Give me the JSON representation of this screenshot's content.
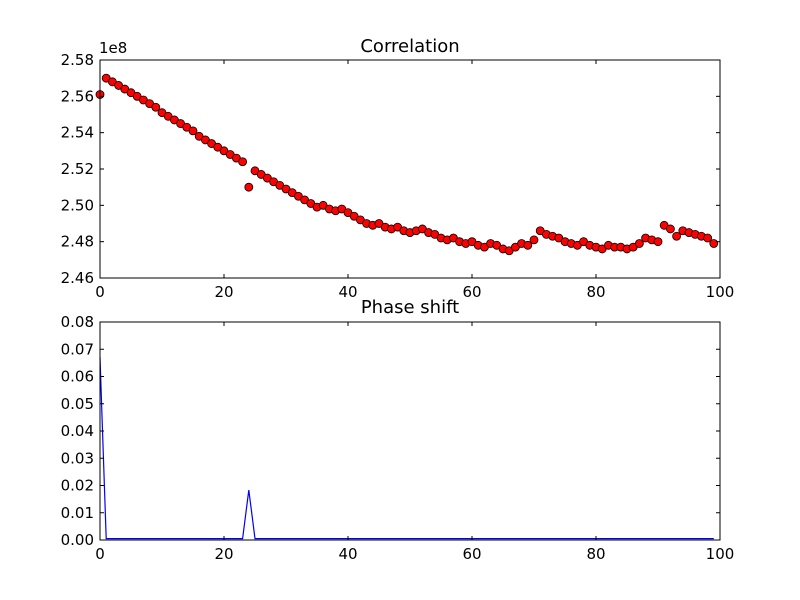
{
  "chart_data": [
    {
      "type": "scatter",
      "title": "Correlation",
      "xlabel": "",
      "ylabel": "",
      "offset_label": "1e8",
      "xlim": [
        0,
        100
      ],
      "ylim": [
        2.46,
        2.58
      ],
      "x_ticks": [
        0,
        20,
        40,
        60,
        80,
        100
      ],
      "x_tick_labels": [
        "0",
        "20",
        "40",
        "60",
        "80",
        "100"
      ],
      "y_ticks": [
        2.46,
        2.48,
        2.5,
        2.52,
        2.54,
        2.56,
        2.58
      ],
      "y_tick_labels": [
        "2.46",
        "2.48",
        "2.50",
        "2.52",
        "2.54",
        "2.56",
        "2.58"
      ],
      "grid": false,
      "marker_color": "#ff0000",
      "x": [
        0,
        1,
        2,
        3,
        4,
        5,
        6,
        7,
        8,
        9,
        10,
        11,
        12,
        13,
        14,
        15,
        16,
        17,
        18,
        19,
        20,
        21,
        22,
        23,
        24,
        25,
        26,
        27,
        28,
        29,
        30,
        31,
        32,
        33,
        34,
        35,
        36,
        37,
        38,
        39,
        40,
        41,
        42,
        43,
        44,
        45,
        46,
        47,
        48,
        49,
        50,
        51,
        52,
        53,
        54,
        55,
        56,
        57,
        58,
        59,
        60,
        61,
        62,
        63,
        64,
        65,
        66,
        67,
        68,
        69,
        70,
        71,
        72,
        73,
        74,
        75,
        76,
        77,
        78,
        79,
        80,
        81,
        82,
        83,
        84,
        85,
        86,
        87,
        88,
        89,
        90,
        91,
        92,
        93,
        94,
        95,
        96,
        97,
        98,
        99
      ],
      "y": [
        2.561,
        2.57,
        2.568,
        2.566,
        2.564,
        2.562,
        2.56,
        2.558,
        2.556,
        2.554,
        2.551,
        2.549,
        2.547,
        2.545,
        2.543,
        2.541,
        2.538,
        2.536,
        2.534,
        2.532,
        2.53,
        2.528,
        2.526,
        2.524,
        2.51,
        2.519,
        2.517,
        2.515,
        2.513,
        2.511,
        2.509,
        2.507,
        2.505,
        2.503,
        2.501,
        2.499,
        2.5,
        2.498,
        2.497,
        2.498,
        2.496,
        2.494,
        2.492,
        2.49,
        2.489,
        2.49,
        2.488,
        2.487,
        2.488,
        2.486,
        2.485,
        2.486,
        2.487,
        2.485,
        2.484,
        2.482,
        2.481,
        2.482,
        2.48,
        2.479,
        2.48,
        2.478,
        2.477,
        2.479,
        2.478,
        2.476,
        2.475,
        2.477,
        2.479,
        2.478,
        2.481,
        2.486,
        2.484,
        2.483,
        2.482,
        2.48,
        2.479,
        2.478,
        2.48,
        2.478,
        2.477,
        2.476,
        2.478,
        2.477,
        2.477,
        2.476,
        2.477,
        2.479,
        2.482,
        2.481,
        2.48,
        2.489,
        2.487,
        2.483,
        2.486,
        2.485,
        2.484,
        2.483,
        2.482,
        2.479
      ]
    },
    {
      "type": "line",
      "title": "Phase shift",
      "xlabel": "",
      "ylabel": "",
      "xlim": [
        0,
        100
      ],
      "ylim": [
        0,
        0.08
      ],
      "x_ticks": [
        0,
        20,
        40,
        60,
        80,
        100
      ],
      "x_tick_labels": [
        "0",
        "20",
        "40",
        "60",
        "80",
        "100"
      ],
      "y_ticks": [
        0,
        0.01,
        0.02,
        0.03,
        0.04,
        0.05,
        0.06,
        0.07,
        0.08
      ],
      "y_tick_labels": [
        "0.00",
        "0.01",
        "0.02",
        "0.03",
        "0.04",
        "0.05",
        "0.06",
        "0.07",
        "0.08"
      ],
      "grid": false,
      "line_color": "#0000ff",
      "x": [
        0,
        1,
        23,
        24,
        25,
        99
      ],
      "y": [
        0.067,
        0.0005,
        0.0005,
        0.0183,
        0.0005,
        0.0005
      ]
    }
  ]
}
